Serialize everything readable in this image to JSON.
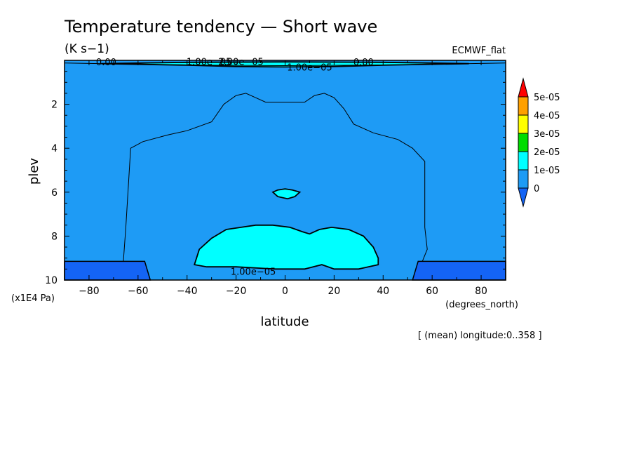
{
  "chart_data": {
    "type": "contour",
    "title": "Temperature tendency — Short wave",
    "units": "(K s−1)",
    "source": "ECMWF_flat",
    "xlabel": "latitude",
    "x_units": "(degrees_north)",
    "ylabel": "plev",
    "y_units": "(x1E4 Pa)",
    "xlim": [
      -90,
      90
    ],
    "ylim": [
      10,
      0
    ],
    "x_ticks": [
      -80,
      -60,
      -40,
      -20,
      0,
      20,
      40,
      60,
      80
    ],
    "x_tick_labels": [
      "−80",
      "−60",
      "−40",
      "−20",
      "0",
      "20",
      "40",
      "60",
      "80"
    ],
    "y_ticks": [
      2,
      4,
      6,
      8,
      10
    ],
    "y_tick_labels": [
      "2",
      "4",
      "6",
      "8",
      "10"
    ],
    "note": "[ (mean) longitude:0..358 ]",
    "levels": [
      {
        "label": "0",
        "color": "#1e9bf5"
      },
      {
        "label": "1e-05",
        "color": "#00ffff"
      },
      {
        "label": "2e-05",
        "color": "#00dc00"
      },
      {
        "label": "3e-05",
        "color": "#ffff00"
      },
      {
        "label": "4e-05",
        "color": "#ffa000"
      },
      {
        "label": "5e-05",
        "color": "#ff0000"
      }
    ],
    "below_min_color": "#1464f5",
    "regions": [
      {
        "level": "1e-05",
        "description": "lower-tropospheric maximum",
        "boundary": [
          [
            -37,
            9.3
          ],
          [
            -35,
            8.6
          ],
          [
            -30,
            8.1
          ],
          [
            -24,
            7.7
          ],
          [
            -18,
            7.6
          ],
          [
            -12,
            7.5
          ],
          [
            -5,
            7.5
          ],
          [
            2,
            7.6
          ],
          [
            7,
            7.8
          ],
          [
            10,
            7.9
          ],
          [
            14,
            7.7
          ],
          [
            19,
            7.6
          ],
          [
            26,
            7.7
          ],
          [
            32,
            8.0
          ],
          [
            36,
            8.5
          ],
          [
            38,
            9.0
          ],
          [
            38,
            9.3
          ],
          [
            30,
            9.5
          ],
          [
            20,
            9.5
          ],
          [
            15,
            9.3
          ],
          [
            8,
            9.5
          ],
          [
            -4,
            9.5
          ],
          [
            -20,
            9.4
          ],
          [
            -32,
            9.4
          ]
        ]
      },
      {
        "level": "1e-05",
        "description": "mid-tropospheric cell",
        "boundary": [
          [
            -5,
            6.0
          ],
          [
            -3,
            5.9
          ],
          [
            0,
            5.85
          ],
          [
            3,
            5.9
          ],
          [
            6,
            6.0
          ],
          [
            4,
            6.2
          ],
          [
            1,
            6.3
          ],
          [
            -3,
            6.2
          ]
        ]
      },
      {
        "level": "1e-05",
        "description": "stratospheric layer",
        "boundary": [
          [
            -75,
            0.15
          ],
          [
            -40,
            0.22
          ],
          [
            -20,
            0.28
          ],
          [
            0,
            0.3
          ],
          [
            20,
            0.28
          ],
          [
            40,
            0.22
          ],
          [
            75,
            0.15
          ],
          [
            40,
            0.09
          ],
          [
            0,
            0.07
          ],
          [
            -40,
            0.09
          ]
        ]
      }
    ],
    "contour_lines": [
      {
        "value": "0",
        "label": "0.00",
        "label_at": [
          -73,
          0.06
        ]
      },
      {
        "value": "0",
        "label": "0.00",
        "label_at": [
          32,
          0.06
        ]
      },
      {
        "value": "1e-05",
        "label": "1.00e−05",
        "label_at": [
          -31,
          0.05
        ]
      },
      {
        "value": "2e-05",
        "label": "2.00e−05",
        "label_at": [
          -18,
          0.05
        ]
      },
      {
        "value": "1e-05",
        "label": "1.00e−05",
        "label_at": [
          10,
          0.3
        ]
      },
      {
        "value": "1e-05",
        "label": "1.00e−05",
        "label_at": [
          -13,
          9.6
        ]
      }
    ],
    "masked_regions": [
      {
        "x_range": [
          -90,
          -55
        ],
        "y_top": 9.15,
        "description": "below surface"
      },
      {
        "x_range": [
          52,
          90
        ],
        "y_top": 9.15,
        "description": "below surface"
      }
    ]
  }
}
